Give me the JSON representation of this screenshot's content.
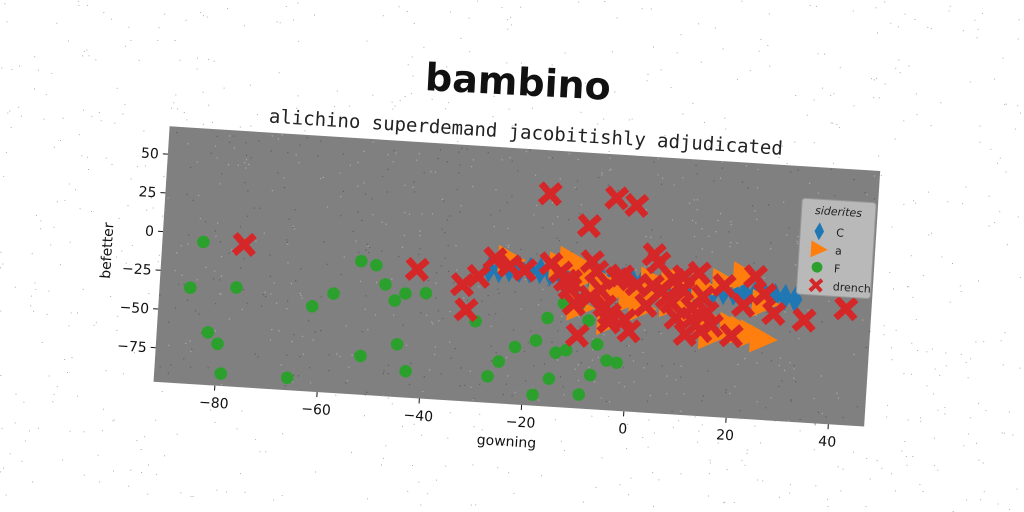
{
  "chart_data": {
    "type": "scatter",
    "title": "bambino",
    "subtitle": "alichino superdemand jacobitishly adjudicated",
    "xlabel": "gowning",
    "ylabel": "befetter",
    "xlim": [
      -92,
      47
    ],
    "ylim": [
      -97,
      68
    ],
    "xticks": [
      -80,
      -60,
      -40,
      -20,
      0,
      20,
      40
    ],
    "yticks": [
      50,
      25,
      0,
      -25,
      -50,
      -75
    ],
    "grid": false,
    "legend": {
      "title": "siderites",
      "placement": "top-right"
    },
    "background": "#808080",
    "series": [
      {
        "name": "C",
        "marker": "thin_diamond",
        "color": "#1f77b4",
        "x": [
          -28,
          -26,
          -24,
          -22,
          -20,
          -18,
          -16,
          -14,
          -12,
          -10,
          -8,
          -6,
          -4,
          -2,
          0,
          2,
          4,
          6,
          8,
          10,
          12,
          14,
          16,
          18,
          20,
          22,
          24,
          26,
          28,
          30,
          32
        ],
        "y": [
          -11,
          -11,
          -10,
          -10,
          -10,
          -10,
          -11,
          -11,
          -12,
          -12,
          -12,
          -13,
          -13,
          -13,
          -13,
          -13,
          -14,
          -14,
          -14,
          -15,
          -15,
          -15,
          -16,
          -16,
          -16,
          -16,
          -17,
          -17,
          -17,
          -17,
          -18
        ]
      },
      {
        "name": "a",
        "marker": "triangle_right",
        "color": "#ff7f0e",
        "x": [
          -24,
          -14,
          -10,
          -6,
          -2,
          3,
          8,
          12,
          15,
          20,
          24,
          -12,
          -8,
          -4,
          0,
          4,
          10,
          14,
          18,
          22,
          26,
          -10,
          -4,
          2,
          8,
          12,
          16,
          22,
          26
        ],
        "y": [
          -4,
          -6,
          -10,
          -14,
          -18,
          -22,
          -26,
          -30,
          -34,
          -38,
          -42,
          -2,
          -10,
          -20,
          -24,
          -12,
          -12,
          -14,
          -10,
          -5,
          -22,
          -32,
          -40,
          -30,
          -10,
          -28,
          -45,
          -40,
          -45
        ]
      },
      {
        "name": "F",
        "marker": "circle",
        "color": "#2ca02c",
        "x": [
          -84,
          -86,
          -82,
          -80,
          -77,
          -79,
          -62,
          -58,
          -53,
          -50,
          -48,
          -46,
          -44,
          -40,
          -30,
          -27,
          -25,
          -22,
          -18,
          -16,
          -14,
          -12,
          -10,
          -8,
          -6,
          -4,
          -2,
          -66,
          -45,
          -43,
          -15,
          -13,
          -9,
          -7,
          -18,
          -52
        ],
        "y": [
          -5,
          -35,
          -63,
          -70,
          -33,
          -89,
          -42,
          -33,
          -11,
          -13,
          -25,
          -35,
          -30,
          -29,
          -45,
          -80,
          -70,
          -60,
          -55,
          -40,
          -62,
          -60,
          -30,
          -40,
          -55,
          -65,
          -66,
          -89,
          -63,
          -80,
          -79,
          -30,
          -88,
          -75,
          -90,
          -72
        ]
      },
      {
        "name": "drench",
        "marker": "x",
        "color": "#d62728",
        "x": [
          -76,
          -42,
          -33,
          -32,
          -30,
          -27,
          -24,
          -21,
          -17,
          -14,
          -13,
          -12,
          -11,
          -9,
          -8,
          -7,
          -6,
          -5,
          -4,
          -3,
          -1,
          0,
          1,
          3,
          4,
          5,
          6,
          7,
          8,
          9,
          10,
          11,
          12,
          13,
          14,
          15,
          16,
          18,
          20,
          22,
          24,
          26,
          28,
          34,
          42,
          -16,
          -12,
          -8,
          -4,
          0,
          4,
          8,
          12,
          -10,
          -4,
          -2,
          14,
          10
        ],
        "y": [
          -5,
          -14,
          -22,
          -38,
          -16,
          -4,
          -8,
          -10,
          40,
          -10,
          -15,
          -20,
          -30,
          21,
          -2,
          -8,
          -20,
          -30,
          40,
          -12,
          -38,
          36,
          -15,
          -28,
          5,
          0,
          -18,
          -22,
          -10,
          -35,
          -16,
          -45,
          -28,
          -5,
          -20,
          -30,
          -38,
          -12,
          -44,
          -24,
          -5,
          -16,
          -28,
          -31,
          -22,
          -5,
          -15,
          -25,
          -35,
          -45,
          -15,
          -25,
          -35,
          -50,
          -40,
          -10,
          -42,
          -8
        ]
      }
    ]
  }
}
